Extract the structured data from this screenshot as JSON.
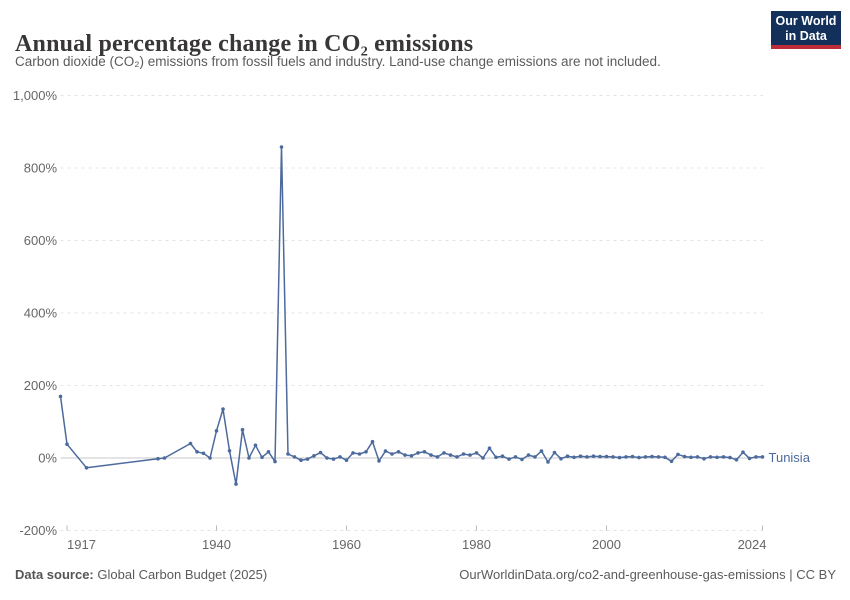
{
  "header": {
    "title": "Annual percentage change in CO₂ emissions",
    "subtitle": "Carbon dioxide (CO₂) emissions from fossil fuels and industry. Land-use change emissions are not included."
  },
  "logo": {
    "line1": "Our World",
    "line2": "in Data"
  },
  "colors": {
    "logo_navy": "#12305A",
    "logo_red": "#BC2D37",
    "series_blue": "#4C6A9C",
    "gridline": "#e3e3e3",
    "zero_line": "#c8c8c8",
    "tick_text": "#666666"
  },
  "footer": {
    "source_label": "Data source:",
    "source_value": "Global Carbon Budget (2025)",
    "link": "OurWorldinData.org/co2-and-greenhouse-gas-emissions | CC BY"
  },
  "chart_data": {
    "type": "line",
    "title": "Annual percentage change in CO₂ emissions",
    "subtitle": "Carbon dioxide (CO₂) emissions from fossil fuels and industry. Land-use change emissions are not included.",
    "unit": "%",
    "grid": "dashed-horizontal",
    "legend_position": "end-of-line",
    "x_axis": {
      "min": 1916,
      "max": 2024,
      "ticks": [
        1917,
        1940,
        1960,
        1980,
        2000,
        2024
      ]
    },
    "y_axis": {
      "min": -200,
      "max": 1000,
      "ticks": [
        {
          "value": -200,
          "label": "-200%"
        },
        {
          "value": 0,
          "label": "0%"
        },
        {
          "value": 200,
          "label": "200%"
        },
        {
          "value": 400,
          "label": "400%"
        },
        {
          "value": 600,
          "label": "600%"
        },
        {
          "value": 800,
          "label": "800%"
        },
        {
          "value": 1000,
          "label": "1,000%"
        }
      ]
    },
    "series": [
      {
        "name": "Tunisia",
        "color": "#4C6A9C",
        "points": [
          [
            1916,
            170
          ],
          [
            1917,
            38
          ],
          [
            1920,
            -27
          ],
          [
            1931,
            -2
          ],
          [
            1932,
            0
          ],
          [
            1936,
            40
          ],
          [
            1937,
            17
          ],
          [
            1938,
            13
          ],
          [
            1939,
            0
          ],
          [
            1940,
            75
          ],
          [
            1941,
            135
          ],
          [
            1942,
            20
          ],
          [
            1943,
            -72
          ],
          [
            1944,
            78
          ],
          [
            1945,
            0
          ],
          [
            1946,
            35
          ],
          [
            1947,
            2
          ],
          [
            1948,
            17
          ],
          [
            1949,
            -10
          ],
          [
            1950,
            858
          ],
          [
            1951,
            11
          ],
          [
            1952,
            3
          ],
          [
            1953,
            -6
          ],
          [
            1954,
            -3
          ],
          [
            1955,
            6
          ],
          [
            1956,
            15
          ],
          [
            1957,
            0
          ],
          [
            1958,
            -3
          ],
          [
            1959,
            3
          ],
          [
            1960,
            -6
          ],
          [
            1961,
            14
          ],
          [
            1962,
            11
          ],
          [
            1963,
            17
          ],
          [
            1964,
            45
          ],
          [
            1965,
            -8
          ],
          [
            1966,
            19
          ],
          [
            1967,
            11
          ],
          [
            1968,
            17
          ],
          [
            1969,
            8
          ],
          [
            1970,
            6
          ],
          [
            1971,
            14
          ],
          [
            1972,
            17
          ],
          [
            1973,
            8
          ],
          [
            1974,
            3
          ],
          [
            1975,
            14
          ],
          [
            1976,
            8
          ],
          [
            1977,
            3
          ],
          [
            1978,
            11
          ],
          [
            1979,
            8
          ],
          [
            1980,
            14
          ],
          [
            1981,
            0
          ],
          [
            1982,
            27
          ],
          [
            1983,
            2
          ],
          [
            1984,
            5
          ],
          [
            1985,
            -3
          ],
          [
            1986,
            3
          ],
          [
            1987,
            -4
          ],
          [
            1988,
            8
          ],
          [
            1989,
            3
          ],
          [
            1990,
            19
          ],
          [
            1991,
            -11
          ],
          [
            1992,
            15
          ],
          [
            1993,
            -2
          ],
          [
            1994,
            5
          ],
          [
            1995,
            2
          ],
          [
            1996,
            5
          ],
          [
            1997,
            3
          ],
          [
            1998,
            5
          ],
          [
            1999,
            4
          ],
          [
            2000,
            4
          ],
          [
            2001,
            3
          ],
          [
            2002,
            1
          ],
          [
            2003,
            3
          ],
          [
            2004,
            4
          ],
          [
            2005,
            1
          ],
          [
            2006,
            3
          ],
          [
            2007,
            4
          ],
          [
            2008,
            3
          ],
          [
            2009,
            2
          ],
          [
            2010,
            -9
          ],
          [
            2011,
            10
          ],
          [
            2012,
            4
          ],
          [
            2013,
            2
          ],
          [
            2014,
            3
          ],
          [
            2015,
            -2
          ],
          [
            2016,
            3
          ],
          [
            2017,
            2
          ],
          [
            2018,
            3
          ],
          [
            2019,
            1
          ],
          [
            2020,
            -5
          ],
          [
            2021,
            16
          ],
          [
            2022,
            -1
          ],
          [
            2023,
            3
          ],
          [
            2024,
            3
          ]
        ]
      }
    ]
  }
}
